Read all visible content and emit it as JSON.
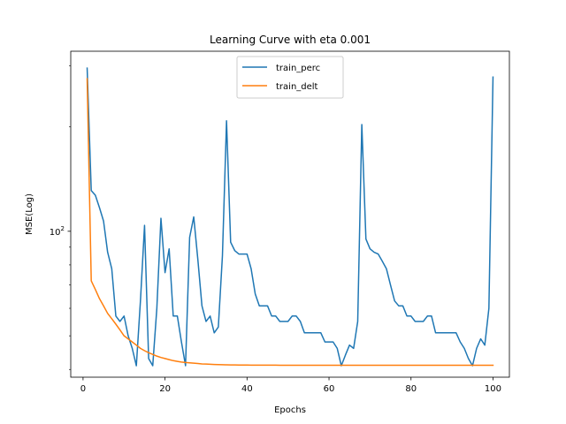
{
  "chart_data": {
    "type": "line",
    "title": "Learning Curve with eta 0.001",
    "xlabel": "Epochs",
    "ylabel": "MSE(Log)",
    "yscale": "log",
    "xlim": [
      -3,
      104
    ],
    "ylim": [
      38,
      330
    ],
    "xticks": [
      0,
      20,
      40,
      60,
      80,
      100
    ],
    "yticks": [
      {
        "value": 100,
        "base": "10",
        "exp": "2"
      }
    ],
    "grid": false,
    "legend_position": "top-center",
    "series": [
      {
        "name": "train_perc",
        "color": "#1f77b4",
        "x": [
          1,
          2,
          3,
          4,
          5,
          6,
          7,
          8,
          9,
          10,
          11,
          12,
          13,
          14,
          15,
          16,
          17,
          18,
          19,
          20,
          21,
          22,
          23,
          24,
          25,
          26,
          27,
          28,
          29,
          30,
          31,
          32,
          33,
          34,
          35,
          36,
          37,
          38,
          39,
          40,
          41,
          42,
          43,
          44,
          45,
          46,
          47,
          48,
          49,
          50,
          51,
          52,
          53,
          54,
          55,
          56,
          57,
          58,
          59,
          60,
          61,
          62,
          63,
          64,
          65,
          66,
          67,
          68,
          69,
          70,
          71,
          72,
          73,
          74,
          75,
          76,
          77,
          78,
          79,
          80,
          81,
          82,
          83,
          84,
          85,
          86,
          87,
          88,
          89,
          90,
          91,
          92,
          93,
          94,
          95,
          96,
          97,
          98,
          99,
          100
        ],
        "values": [
          295,
          131,
          127,
          117,
          107,
          87,
          78,
          57,
          55,
          57,
          50,
          46,
          41,
          63,
          104,
          43,
          41,
          60,
          109,
          76,
          89,
          57,
          57,
          48,
          41,
          96,
          110,
          83,
          61,
          55,
          57,
          51,
          53,
          85,
          208,
          93,
          88,
          86,
          86,
          86,
          78,
          66,
          61,
          61,
          61,
          57,
          57,
          55,
          55,
          55,
          57,
          57,
          55,
          51,
          51,
          51,
          51,
          51,
          48,
          48,
          48,
          46,
          41,
          44,
          47,
          46,
          55,
          203,
          95,
          89,
          87,
          86,
          82,
          78,
          70,
          63,
          61,
          61,
          57,
          57,
          55,
          55,
          55,
          57,
          57,
          51,
          51,
          51,
          51,
          51,
          51,
          48,
          46,
          43,
          41,
          46,
          49,
          47,
          60,
          278
        ]
      },
      {
        "name": "train_delt",
        "color": "#ff7f0e",
        "x": [
          1,
          2,
          3,
          4,
          5,
          6,
          7,
          8,
          9,
          10,
          11,
          12,
          13,
          14,
          15,
          16,
          17,
          18,
          19,
          20,
          21,
          22,
          23,
          24,
          25,
          26,
          27,
          28,
          29,
          30,
          31,
          32,
          33,
          34,
          35,
          36,
          37,
          38,
          39,
          40,
          41,
          42,
          43,
          44,
          45,
          46,
          47,
          48,
          49,
          50,
          51,
          52,
          53,
          54,
          55,
          56,
          57,
          58,
          59,
          60,
          61,
          62,
          63,
          64,
          65,
          66,
          67,
          68,
          69,
          70,
          71,
          72,
          73,
          74,
          75,
          76,
          77,
          78,
          79,
          80,
          81,
          82,
          83,
          84,
          85,
          86,
          87,
          88,
          89,
          90,
          91,
          92,
          93,
          94,
          95,
          96,
          97,
          98,
          99,
          100
        ],
        "values": [
          275,
          72,
          68,
          64,
          61,
          58,
          56,
          54,
          52,
          50,
          49,
          48,
          47,
          46,
          45.3,
          44.7,
          44.2,
          43.7,
          43.3,
          43,
          42.7,
          42.4,
          42.2,
          42,
          41.9,
          41.8,
          41.7,
          41.6,
          41.5,
          41.45,
          41.4,
          41.35,
          41.3,
          41.27,
          41.25,
          41.23,
          41.21,
          41.2,
          41.19,
          41.18,
          41.17,
          41.17,
          41.16,
          41.16,
          41.15,
          41.15,
          41.15,
          41.14,
          41.14,
          41.14,
          41.14,
          41.13,
          41.13,
          41.13,
          41.13,
          41.13,
          41.13,
          41.12,
          41.12,
          41.12,
          41.12,
          41.12,
          41.12,
          41.12,
          41.12,
          41.12,
          41.12,
          41.12,
          41.12,
          41.12,
          41.12,
          41.12,
          41.12,
          41.12,
          41.12,
          41.12,
          41.12,
          41.12,
          41.12,
          41.12,
          41.12,
          41.12,
          41.12,
          41.12,
          41.12,
          41.12,
          41.12,
          41.12,
          41.12,
          41.12,
          41.12,
          41.12,
          41.12,
          41.12,
          41.12,
          41.12,
          41.12,
          41.12,
          41.12,
          41.12
        ]
      }
    ]
  }
}
